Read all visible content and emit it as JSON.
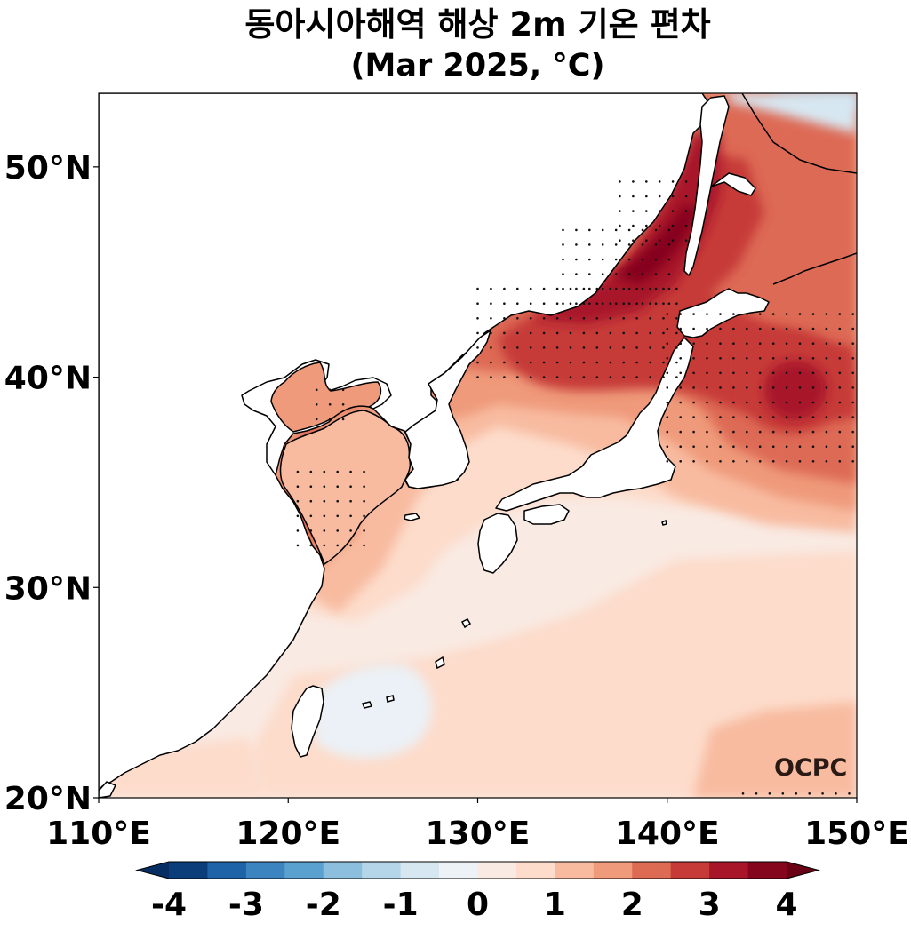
{
  "title": "동아시아해역 해상 2m 기온 편차",
  "subtitle": "(Mar 2025, °C)",
  "watermark": "OCPC",
  "map": {
    "projection": "PlateCarree",
    "lon_range": [
      110,
      150
    ],
    "lat_range": [
      20,
      53.5
    ],
    "xticks": [
      {
        "value": 110,
        "label": "110°E"
      },
      {
        "value": 120,
        "label": "120°E"
      },
      {
        "value": 130,
        "label": "130°E"
      },
      {
        "value": 140,
        "label": "140°E"
      },
      {
        "value": 150,
        "label": "150°E"
      }
    ],
    "yticks": [
      {
        "value": 20,
        "label": "20°N"
      },
      {
        "value": 30,
        "label": "30°N"
      },
      {
        "value": 40,
        "label": "40°N"
      },
      {
        "value": 50,
        "label": "50°N"
      }
    ],
    "stippling": "statistically significant areas",
    "dominant_sign": "positive anomalies over most of the domain; slight negative anomaly east of Taiwan and in the far northeast corner"
  },
  "colorbar": {
    "levels": [
      -4,
      -3.5,
      -3,
      -2.5,
      -2,
      -1.5,
      -1,
      -0.5,
      0,
      0.5,
      1,
      1.5,
      2,
      2.5,
      3,
      3.5,
      4
    ],
    "colors": [
      "#0b3d7a",
      "#1e63a8",
      "#3b84bf",
      "#5aa1cf",
      "#8bbfdd",
      "#b5d6e8",
      "#d7e7f1",
      "#edf2f6",
      "#f9eae3",
      "#fddccb",
      "#f8bba0",
      "#ef9a7a",
      "#dd6b54",
      "#c63a37",
      "#a81529",
      "#85051d"
    ],
    "extend_min_color": "#062e63",
    "extend_max_color": "#690014",
    "tick_labels": [
      {
        "value": -4,
        "label": "-4"
      },
      {
        "value": -3,
        "label": "-3"
      },
      {
        "value": -2,
        "label": "-2"
      },
      {
        "value": -1,
        "label": "-1"
      },
      {
        "value": 0,
        "label": "0"
      },
      {
        "value": 1,
        "label": "1"
      },
      {
        "value": 2,
        "label": "2"
      },
      {
        "value": 3,
        "label": "3"
      },
      {
        "value": 4,
        "label": "4"
      }
    ]
  }
}
